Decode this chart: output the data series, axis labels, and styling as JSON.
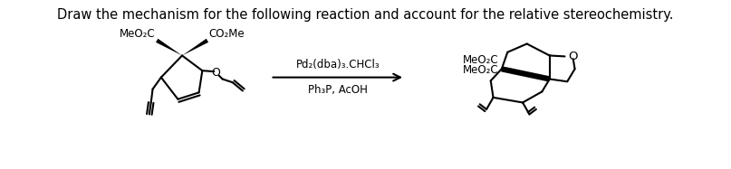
{
  "title_text": "Draw the mechanism for the following reaction and account for the relative stereochemistry.",
  "title_fontsize": 10.5,
  "reagent_line1": "Pd₂(dba)₃.CHCl₃",
  "reagent_line2": "Ph₃P, AcOH",
  "bg_color": "#ffffff",
  "line_color": "#000000",
  "fig_width": 8.07,
  "fig_height": 1.87,
  "dpi": 100
}
